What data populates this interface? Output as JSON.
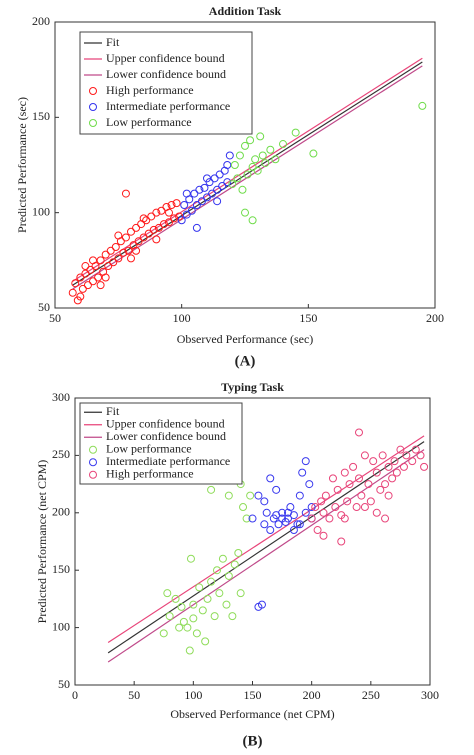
{
  "chart_data": [
    {
      "type": "scatter",
      "title": "Addition Task",
      "xlabel": "Observed Performance (sec)",
      "ylabel": "Predicted Performance (sec)",
      "caption": "(A)",
      "xlim": [
        50,
        200
      ],
      "ylim": [
        50,
        200
      ],
      "xticks": [
        50,
        100,
        150,
        200
      ],
      "yticks": [
        50,
        100,
        150,
        200
      ],
      "legend": "upper left",
      "series": [
        {
          "name": "Fit",
          "color": "#333333",
          "mode": "line",
          "x": [
            57,
            195
          ],
          "values": [
            62,
            179
          ]
        },
        {
          "name": "Upper confidence bound",
          "color": "#e8457a",
          "mode": "line",
          "x": [
            57,
            195
          ],
          "values": [
            64,
            181
          ]
        },
        {
          "name": "Lower confidence bound",
          "color": "#c04a8a",
          "mode": "line",
          "x": [
            57,
            195
          ],
          "values": [
            60,
            177
          ]
        },
        {
          "name": "High performance",
          "color": "#ff1a1a",
          "mode": "markers",
          "x": [
            57,
            58,
            59,
            60,
            61,
            62,
            63,
            64,
            65,
            66,
            67,
            68,
            69,
            70,
            71,
            72,
            73,
            74,
            75,
            76,
            77,
            78,
            79,
            80,
            81,
            82,
            83,
            84,
            85,
            86,
            87,
            88,
            89,
            90,
            91,
            92,
            93,
            94,
            95,
            96,
            97,
            98,
            99,
            60,
            65,
            70,
            75,
            80,
            85,
            90,
            95,
            62,
            68,
            78,
            82
          ],
          "values": [
            58,
            63,
            54,
            66,
            60,
            68,
            62,
            70,
            64,
            72,
            66,
            75,
            69,
            78,
            72,
            80,
            74,
            82,
            76,
            85,
            79,
            87,
            80,
            90,
            83,
            92,
            85,
            94,
            87,
            96,
            89,
            98,
            91,
            100,
            92,
            101,
            94,
            103,
            95,
            104,
            97,
            105,
            98,
            56,
            75,
            66,
            88,
            76,
            97,
            86,
            100,
            72,
            62,
            110,
            80
          ]
        },
        {
          "name": "Intermediate performance",
          "color": "#3333ee",
          "mode": "markers",
          "x": [
            100,
            101,
            102,
            103,
            104,
            105,
            106,
            107,
            108,
            109,
            110,
            111,
            112,
            113,
            114,
            115,
            116,
            117,
            118,
            119,
            102,
            106,
            110,
            114,
            118
          ],
          "values": [
            96,
            104,
            99,
            107,
            101,
            110,
            104,
            112,
            106,
            113,
            108,
            116,
            110,
            118,
            112,
            120,
            114,
            122,
            116,
            130,
            110,
            92,
            118,
            106,
            125
          ]
        },
        {
          "name": "Low performance",
          "color": "#6fdc4a",
          "mode": "markers",
          "x": [
            120,
            121,
            122,
            123,
            124,
            125,
            126,
            127,
            128,
            129,
            130,
            131,
            132,
            133,
            135,
            137,
            140,
            145,
            152,
            195,
            125,
            128
          ],
          "values": [
            115,
            125,
            118,
            130,
            112,
            135,
            120,
            138,
            124,
            128,
            122,
            140,
            130,
            126,
            133,
            128,
            136,
            142,
            131,
            156,
            100,
            96
          ]
        }
      ]
    },
    {
      "type": "scatter",
      "title": "Typing Task",
      "xlabel": "Observed Performance (net CPM)",
      "ylabel": "Predicted Performance (net CPM)",
      "caption": "(B)",
      "xlim": [
        0,
        300
      ],
      "ylim": [
        50,
        300
      ],
      "xticks": [
        0,
        50,
        100,
        150,
        200,
        250,
        300
      ],
      "yticks": [
        50,
        100,
        150,
        200,
        250,
        300
      ],
      "legend": "upper left",
      "series": [
        {
          "name": "Fit",
          "color": "#333333",
          "mode": "line",
          "x": [
            28,
            295
          ],
          "values": [
            78,
            262
          ]
        },
        {
          "name": "Upper confidence bound",
          "color": "#e8457a",
          "mode": "line",
          "x": [
            28,
            295
          ],
          "values": [
            87,
            267
          ]
        },
        {
          "name": "Lower confidence bound",
          "color": "#c04a8a",
          "mode": "line",
          "x": [
            28,
            295
          ],
          "values": [
            70,
            255
          ]
        },
        {
          "name": "Low performance",
          "color": "#8fdc5a",
          "mode": "markers",
          "x": [
            75,
            78,
            80,
            85,
            88,
            90,
            92,
            95,
            97,
            100,
            100,
            103,
            105,
            108,
            110,
            112,
            115,
            118,
            120,
            122,
            125,
            128,
            130,
            133,
            135,
            138,
            140,
            142,
            145,
            148,
            130,
            120,
            115,
            140,
            98
          ],
          "values": [
            95,
            130,
            110,
            125,
            100,
            118,
            105,
            100,
            80,
            120,
            108,
            95,
            135,
            115,
            88,
            125,
            140,
            110,
            150,
            130,
            160,
            120,
            145,
            110,
            155,
            165,
            130,
            205,
            195,
            215,
            215,
            230,
            220,
            225,
            160
          ]
        },
        {
          "name": "Intermediate performance",
          "color": "#3a3aee",
          "mode": "markers",
          "x": [
            150,
            155,
            158,
            160,
            162,
            165,
            168,
            170,
            172,
            175,
            178,
            180,
            182,
            185,
            188,
            190,
            192,
            195,
            198,
            200,
            160,
            165,
            175,
            185,
            195,
            200,
            170,
            180,
            190,
            155
          ],
          "values": [
            195,
            118,
            120,
            190,
            200,
            185,
            195,
            198,
            190,
            200,
            192,
            195,
            205,
            198,
            190,
            215,
            235,
            200,
            225,
            195,
            210,
            230,
            195,
            185,
            245,
            205,
            220,
            200,
            190,
            215
          ]
        },
        {
          "name": "High performance",
          "color": "#e8457a",
          "mode": "markers",
          "x": [
            200,
            203,
            205,
            208,
            210,
            212,
            215,
            218,
            220,
            222,
            225,
            228,
            230,
            232,
            235,
            238,
            240,
            242,
            245,
            248,
            250,
            252,
            255,
            258,
            260,
            262,
            265,
            268,
            270,
            272,
            275,
            278,
            280,
            285,
            288,
            292,
            295,
            210,
            225,
            240,
            255,
            265,
            228,
            245,
            262
          ],
          "values": [
            195,
            205,
            185,
            210,
            200,
            215,
            195,
            230,
            205,
            220,
            198,
            235,
            210,
            225,
            240,
            205,
            230,
            215,
            250,
            225,
            210,
            245,
            235,
            220,
            250,
            195,
            240,
            230,
            245,
            235,
            255,
            240,
            250,
            245,
            255,
            250,
            240,
            180,
            175,
            270,
            200,
            215,
            195,
            205,
            225
          ]
        }
      ]
    }
  ]
}
